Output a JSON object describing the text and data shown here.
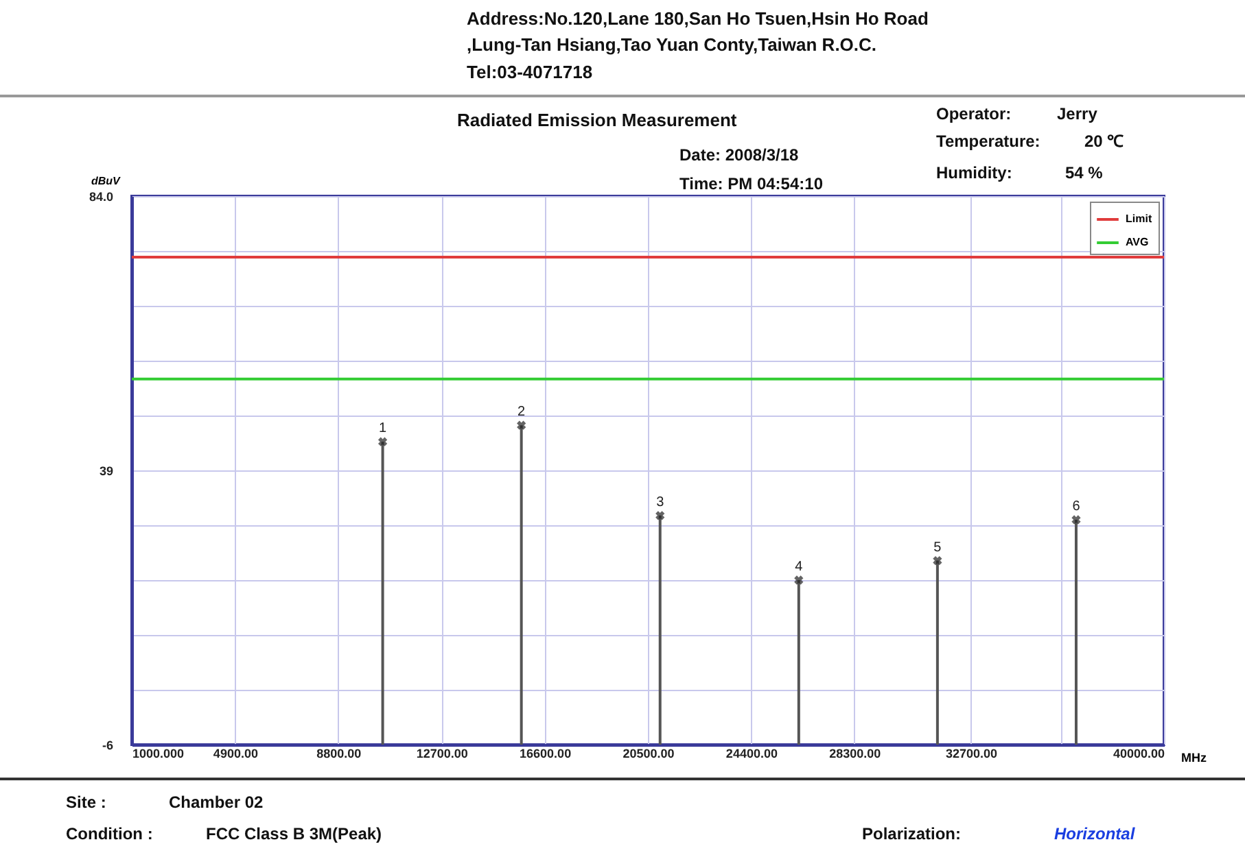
{
  "chart_data": {
    "type": "lollipop",
    "title": "Radiated Emission Measurement",
    "xlabel": "MHz",
    "ylabel": "dBuV",
    "xlim": [
      1000,
      40000
    ],
    "ylim": [
      -6,
      84
    ],
    "xticks": [
      {
        "value": 1000,
        "label": "1000.000"
      },
      {
        "value": 4900,
        "label": "4900.00"
      },
      {
        "value": 8800,
        "label": "8800.00"
      },
      {
        "value": 12700,
        "label": "12700.00"
      },
      {
        "value": 16600,
        "label": "16600.00"
      },
      {
        "value": 20500,
        "label": "20500.00"
      },
      {
        "value": 24400,
        "label": "24400.00"
      },
      {
        "value": 28300,
        "label": "28300.00"
      },
      {
        "value": 32700,
        "label": "32700.00"
      },
      {
        "value": 36100,
        "label": null
      },
      {
        "value": 40000,
        "label": "40000.00"
      }
    ],
    "yticks": [
      -6,
      {
        "value": 3,
        "label": null
      },
      {
        "value": 12,
        "label": null
      },
      {
        "value": 21,
        "label": null
      },
      {
        "value": 30,
        "label": null
      },
      39,
      {
        "value": 48,
        "label": null
      },
      {
        "value": 57,
        "label": null
      },
      {
        "value": 66,
        "label": null
      },
      {
        "value": 75,
        "label": null
      },
      {
        "value": 84,
        "label": "84.0"
      }
    ],
    "grid": true,
    "legend": "top right",
    "series": [
      {
        "marker": "cross",
        "color": "#555555",
        "x": [
          10480,
          15720,
          20960,
          26200,
          31440,
          36680
        ],
        "values": [
          43.7,
          46.4,
          31.6,
          21.0,
          24.2,
          30.9
        ]
      },
      {
        "type": "line",
        "marker": "none",
        "name": "Limit",
        "color": "#e03c3c",
        "x": [
          1000,
          40000
        ],
        "values": [
          74,
          74
        ]
      },
      {
        "type": "line",
        "marker": "none",
        "name": "AVG",
        "color": "#33cc33",
        "x": [
          1000,
          40000
        ],
        "values": [
          54,
          54
        ]
      }
    ],
    "annotations": [
      "Address:No.120,Lane 180,San Ho Tsuen,Hsin Ho Road",
      ",Lung-Tan Hsiang,Tao Yuan Conty,Taiwan R.O.C.",
      "Tel:03-4071718",
      "Date: 2008/3/18",
      "Time: PM 04:54:10",
      "Operator:",
      "Jerry",
      "Temperature:",
      "20 ℃",
      "Humidity:",
      "54 %",
      "Site :",
      "Chamber 02",
      "Condition :",
      "FCC Class B 3M(Peak)",
      "Polarization:",
      "Horizontal",
      {
        "text": "1",
        "x": 10480,
        "y": 43.7
      },
      {
        "text": "2",
        "x": 15720,
        "y": 46.4
      },
      {
        "text": "3",
        "x": 20960,
        "y": 31.6
      },
      {
        "text": "4",
        "x": 26200,
        "y": 21.0
      },
      {
        "text": "5",
        "x": 31440,
        "y": 24.2
      },
      {
        "text": "6",
        "x": 36680,
        "y": 30.9
      }
    ]
  }
}
